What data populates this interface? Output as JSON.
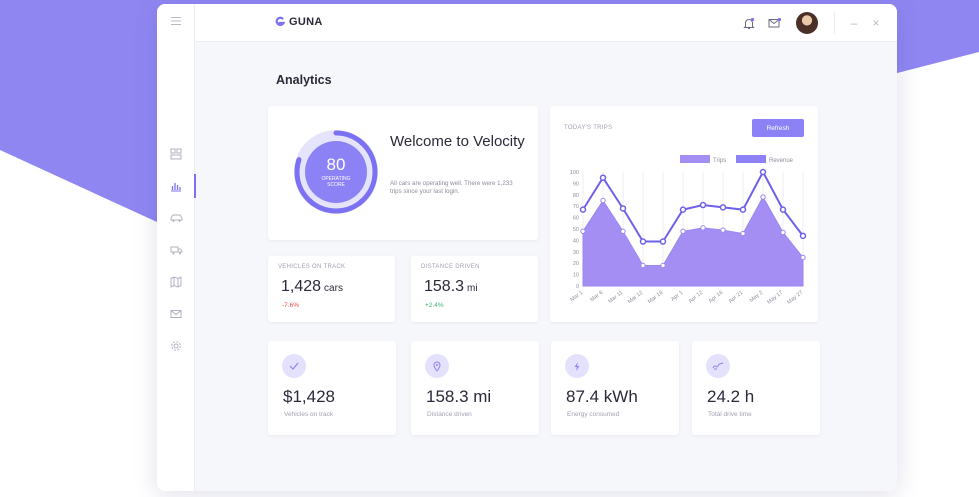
{
  "colors": {
    "accent": "#8c82f5",
    "accent_dark": "#6d61ea",
    "background_band": "#8f86f2",
    "negative": "#e74c4c",
    "positive": "#3bb273"
  },
  "window": {
    "menu_icon": "hamburger-menu-icon",
    "minimize": "–",
    "close": "×"
  },
  "brand": {
    "logo_icon": "guna-logo-icon",
    "name": "GUNA"
  },
  "topbar": {
    "icons": [
      "notification-bell-icon",
      "mail-icon",
      "user-avatar"
    ]
  },
  "sidebar": {
    "items": [
      {
        "icon": "dashboard-icon",
        "active": false
      },
      {
        "icon": "analytics-icon",
        "active": true
      },
      {
        "icon": "car-icon",
        "active": false
      },
      {
        "icon": "truck-icon",
        "active": false
      },
      {
        "icon": "map-icon",
        "active": false
      },
      {
        "icon": "mail-icon",
        "active": false
      },
      {
        "icon": "settings-icon",
        "active": false
      }
    ]
  },
  "page": {
    "title": "Analytics"
  },
  "welcome": {
    "score": "80",
    "score_label": "OPERATING SCORE",
    "score_fraction": 0.8,
    "title": "Welcome to Velocity",
    "text": "All cars are operating well. There were 1,233 trips since your last login."
  },
  "stats": [
    {
      "label": "VEHICLES ON TRACK",
      "value": "1,428",
      "unit": "cars",
      "change": "-7.6%",
      "trend": "negative"
    },
    {
      "label": "DISTANCE DRIVEN",
      "value": "158.3",
      "unit": "mi",
      "change": "+2.4%",
      "trend": "positive"
    }
  ],
  "chart_data": {
    "type": "area",
    "title": "TODAY'S TRIPS",
    "refresh_label": "Refresh",
    "categories": [
      "Mar 1",
      "Mar 6",
      "Mar 11",
      "Mar 12",
      "Mar 16",
      "Apr 1",
      "Apr 12",
      "Apr 16",
      "Apr 21",
      "May 2",
      "May 17",
      "May 27"
    ],
    "series": [
      {
        "name": "Trips",
        "values": [
          48,
          75,
          48,
          18,
          18,
          48,
          51,
          49,
          46,
          78,
          47,
          25
        ],
        "style": "filled-area"
      },
      {
        "name": "Revenue",
        "values": [
          67,
          95,
          68,
          39,
          39,
          67,
          71,
          69,
          67,
          100,
          67,
          44
        ],
        "style": "line"
      }
    ],
    "ylim": [
      0,
      100
    ],
    "yticks": [
      0,
      10,
      20,
      30,
      40,
      50,
      60,
      70,
      80,
      90,
      100
    ],
    "grid": "vertical",
    "legend": "top-right"
  },
  "kpis": [
    {
      "icon": "check-icon",
      "value": "$1,428",
      "label": "Vehicles on track"
    },
    {
      "icon": "location-pin-icon",
      "value": "158.3 mi",
      "label": "Distance driven"
    },
    {
      "icon": "lightning-icon",
      "value": "87.4 kWh",
      "label": "Energy consumed"
    },
    {
      "icon": "road-icon",
      "value": "24.2 h",
      "label": "Total drive time"
    }
  ]
}
